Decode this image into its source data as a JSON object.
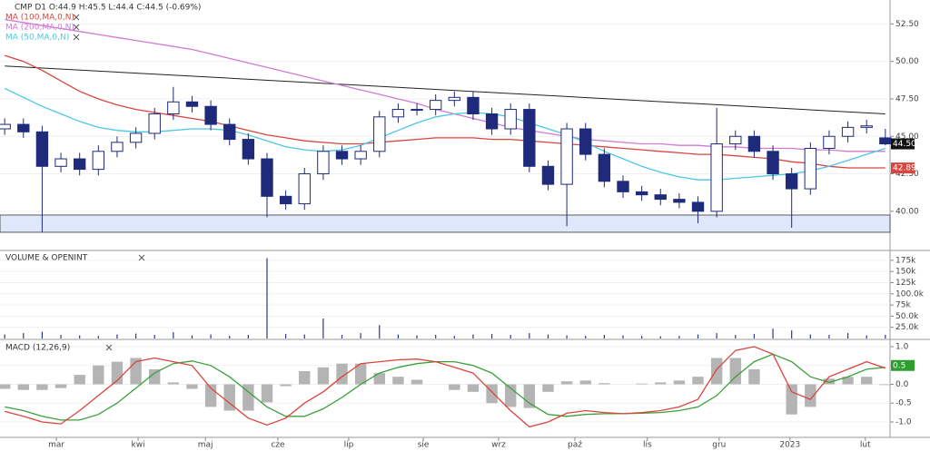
{
  "chart_data": [
    {
      "type": "candlestick",
      "title": "CMP  D1  O:44.9 H:45.5 L:44.4 C:44.5 (-0.69%)",
      "x": [
        0,
        1,
        2,
        3,
        4,
        5,
        6,
        7,
        8,
        9,
        10,
        11,
        12,
        13,
        14,
        15,
        16,
        17,
        18,
        19,
        20,
        21,
        22,
        23,
        24,
        25,
        26,
        27,
        28,
        29,
        30,
        31,
        32,
        33,
        34,
        35,
        36,
        37,
        38,
        39,
        40,
        41,
        42,
        43,
        44,
        45,
        46,
        47
      ],
      "xlim": [
        -0.25,
        47.25
      ],
      "open": [
        45.5,
        45.8,
        45.3,
        43.0,
        43.5,
        42.8,
        44.0,
        44.6,
        45.2,
        46.5,
        47.3,
        47.0,
        45.8,
        44.8,
        43.5,
        41.0,
        40.5,
        42.5,
        44.0,
        43.5,
        44.0,
        46.3,
        46.8,
        46.8,
        47.4,
        47.6,
        46.5,
        45.5,
        46.8,
        43.0,
        41.8,
        45.5,
        43.8,
        42.0,
        41.3,
        41.1,
        40.8,
        40.6,
        40.0,
        44.5,
        45.0,
        44.0,
        42.5,
        41.5,
        44.2,
        45.0,
        45.6,
        44.9
      ],
      "high": [
        46.2,
        46.2,
        45.7,
        43.9,
        43.9,
        44.4,
        45.0,
        45.6,
        46.9,
        48.3,
        47.7,
        47.4,
        46.2,
        45.2,
        43.9,
        41.4,
        42.9,
        44.4,
        44.4,
        44.4,
        46.7,
        47.2,
        47.2,
        47.8,
        48.0,
        48.0,
        46.9,
        47.2,
        47.2,
        43.4,
        45.9,
        45.9,
        44.2,
        42.4,
        41.7,
        41.5,
        41.2,
        41.0,
        46.9,
        45.4,
        45.4,
        44.4,
        42.9,
        44.6,
        45.4,
        46.0,
        46.1,
        45.5
      ],
      "low": [
        45.1,
        44.9,
        38.6,
        42.6,
        42.4,
        42.4,
        43.6,
        44.2,
        44.8,
        46.1,
        46.6,
        45.4,
        44.4,
        43.1,
        39.6,
        40.1,
        40.1,
        42.1,
        43.1,
        43.1,
        43.6,
        45.9,
        46.4,
        46.4,
        47.0,
        46.1,
        45.1,
        45.1,
        42.6,
        41.4,
        39.0,
        43.4,
        41.6,
        40.9,
        40.7,
        40.4,
        40.2,
        39.2,
        39.6,
        44.1,
        43.6,
        42.1,
        38.9,
        41.1,
        43.8,
        44.6,
        45.2,
        44.4
      ],
      "close": [
        45.8,
        45.3,
        43.0,
        43.5,
        42.8,
        44.0,
        44.6,
        45.2,
        46.5,
        47.3,
        47.0,
        45.8,
        44.8,
        43.5,
        41.0,
        40.5,
        42.5,
        44.0,
        43.5,
        44.0,
        46.3,
        46.8,
        46.8,
        47.4,
        47.6,
        46.5,
        45.5,
        46.8,
        43.0,
        41.8,
        45.5,
        43.8,
        42.0,
        41.3,
        41.1,
        40.8,
        40.6,
        40.0,
        44.5,
        45.0,
        44.0,
        42.5,
        41.5,
        44.2,
        45.0,
        45.6,
        45.7,
        44.5
      ],
      "up_color": "#ffffff",
      "down_color": "#1f2a7a",
      "wick_color": "#1f2a7a",
      "series": [
        {
          "name": "MA (100,MA,0,N)",
          "color": "#d9453d",
          "values": [
            50.4,
            50.0,
            49.4,
            48.7,
            48.0,
            47.5,
            47.1,
            46.8,
            46.6,
            46.4,
            46.2,
            46.0,
            45.7,
            45.4,
            45.1,
            44.9,
            44.7,
            44.6,
            44.5,
            44.5,
            44.6,
            44.7,
            44.8,
            44.9,
            44.9,
            44.9,
            44.8,
            44.8,
            44.7,
            44.6,
            44.5,
            44.4,
            44.3,
            44.2,
            44.1,
            44.0,
            43.9,
            43.8,
            43.8,
            43.7,
            43.6,
            43.5,
            43.3,
            43.2,
            43.0,
            42.9,
            42.9,
            42.9
          ]
        },
        {
          "name": "MA (200,MA,0,N)",
          "color": "#d27ad6",
          "values": [
            52.8,
            52.6,
            52.4,
            52.2,
            52.0,
            51.8,
            51.6,
            51.4,
            51.2,
            51.0,
            50.8,
            50.5,
            50.2,
            49.9,
            49.6,
            49.3,
            49.0,
            48.7,
            48.4,
            48.1,
            47.8,
            47.5,
            47.2,
            46.8,
            46.5,
            46.2,
            45.9,
            45.6,
            45.4,
            45.2,
            45.0,
            44.8,
            44.7,
            44.6,
            44.5,
            44.5,
            44.4,
            44.4,
            44.3,
            44.3,
            44.2,
            44.2,
            44.2,
            44.1,
            44.1,
            44.0,
            44.0,
            44.0
          ]
        },
        {
          "name": "MA (50,MA,0,N)",
          "color": "#4cc6e6",
          "values": [
            48.2,
            47.6,
            47.0,
            46.5,
            46.0,
            45.6,
            45.4,
            45.3,
            45.3,
            45.4,
            45.5,
            45.5,
            45.4,
            45.1,
            44.7,
            44.3,
            44.1,
            44.0,
            44.1,
            44.4,
            44.9,
            45.4,
            45.9,
            46.3,
            46.5,
            46.6,
            46.5,
            46.3,
            45.9,
            45.5,
            45.1,
            44.6,
            44.0,
            43.5,
            43.0,
            42.6,
            42.3,
            42.1,
            42.1,
            42.2,
            42.3,
            42.4,
            42.5,
            42.7,
            43.0,
            43.4,
            43.8,
            44.2
          ]
        }
      ],
      "trendline": {
        "x": [
          0,
          47
        ],
        "values": [
          49.7,
          46.5
        ],
        "color": "#222222"
      },
      "zone": [
        38.6,
        39.75
      ],
      "zone_color": "#dfe8fb",
      "value_tags": [
        {
          "value": 44.5,
          "label": "44.50",
          "color": "#111111"
        },
        {
          "value": 42.89,
          "label": "42.89",
          "color": "#d9453d"
        }
      ],
      "ylim": [
        37.75,
        54.1
      ],
      "yticks": [
        {
          "value": 40,
          "label": "40.00"
        },
        {
          "value": 42.5,
          "label": "42.50"
        },
        {
          "value": 45,
          "label": "45.00"
        },
        {
          "value": 47.5,
          "label": "47.50"
        },
        {
          "value": 50,
          "label": "50.00"
        },
        {
          "value": 52.5,
          "label": "52.50"
        }
      ],
      "grid": true
    },
    {
      "type": "bar",
      "title": "VOLUME & OPENINT",
      "x": [
        0,
        1,
        2,
        3,
        4,
        5,
        6,
        7,
        8,
        9,
        10,
        11,
        12,
        13,
        14,
        15,
        16,
        17,
        18,
        19,
        20,
        21,
        22,
        23,
        24,
        25,
        26,
        27,
        28,
        29,
        30,
        31,
        32,
        33,
        34,
        35,
        36,
        37,
        38,
        39,
        40,
        41,
        42,
        43,
        44,
        45,
        46,
        47
      ],
      "xlim": [
        -0.25,
        47.25
      ],
      "values": [
        9000,
        12000,
        15000,
        8000,
        7000,
        6000,
        9000,
        11000,
        8000,
        14000,
        7000,
        9000,
        6000,
        8000,
        180000,
        10000,
        9000,
        45000,
        8000,
        12000,
        30000,
        9000,
        7000,
        8000,
        6000,
        9000,
        10000,
        8000,
        12000,
        9000,
        7000,
        6000,
        8000,
        7000,
        6000,
        5000,
        6000,
        9000,
        12000,
        8000,
        10000,
        22000,
        18000,
        9000,
        8000,
        12000,
        7000,
        8000
      ],
      "color": "#2a3590",
      "ylim": [
        0,
        193000
      ],
      "yticks": [
        {
          "value": 25000,
          "label": "25.0k"
        },
        {
          "value": 50000,
          "label": "50.0k"
        },
        {
          "value": 75000,
          "label": "75k"
        },
        {
          "value": 100000,
          "label": "100.0k"
        },
        {
          "value": 125000,
          "label": "125k"
        },
        {
          "value": 150000,
          "label": "150k"
        },
        {
          "value": 175000,
          "label": "175k"
        }
      ],
      "grid": true
    },
    {
      "type": "macd",
      "title": "MACD (12,26,9)",
      "x": [
        0,
        1,
        2,
        3,
        4,
        5,
        6,
        7,
        8,
        9,
        10,
        11,
        12,
        13,
        14,
        15,
        16,
        17,
        18,
        19,
        20,
        21,
        22,
        23,
        24,
        25,
        26,
        27,
        28,
        29,
        30,
        31,
        32,
        33,
        34,
        35,
        36,
        37,
        38,
        39,
        40,
        41,
        42,
        43,
        44,
        45,
        46,
        47
      ],
      "xlim": [
        -0.25,
        47.25
      ],
      "macd": {
        "color": "#d9453d",
        "values": [
          -0.72,
          -0.85,
          -1.0,
          -1.05,
          -0.7,
          -0.3,
          0.1,
          0.6,
          0.7,
          0.6,
          0.5,
          -0.1,
          -0.5,
          -0.9,
          -1.08,
          -0.9,
          -0.5,
          -0.2,
          0.2,
          0.55,
          0.6,
          0.65,
          0.67,
          0.6,
          0.45,
          0.3,
          -0.2,
          -0.7,
          -1.13,
          -1.0,
          -0.77,
          -0.7,
          -0.75,
          -0.78,
          -0.75,
          -0.7,
          -0.6,
          -0.4,
          0.4,
          0.9,
          1.0,
          0.8,
          -0.2,
          -0.4,
          0.2,
          0.4,
          0.6,
          0.43
        ]
      },
      "signal": {
        "color": "#3aa03a",
        "values": [
          -0.6,
          -0.7,
          -0.85,
          -0.95,
          -0.95,
          -0.8,
          -0.5,
          -0.1,
          0.3,
          0.55,
          0.62,
          0.5,
          0.2,
          -0.2,
          -0.6,
          -0.85,
          -0.85,
          -0.65,
          -0.35,
          0.0,
          0.3,
          0.45,
          0.55,
          0.6,
          0.6,
          0.5,
          0.3,
          -0.1,
          -0.5,
          -0.8,
          -0.85,
          -0.8,
          -0.78,
          -0.78,
          -0.77,
          -0.75,
          -0.7,
          -0.6,
          -0.3,
          0.2,
          0.6,
          0.8,
          0.6,
          0.2,
          0.05,
          0.2,
          0.4,
          0.45
        ]
      },
      "histogram": {
        "color": "#b4b4b4",
        "values": [
          -0.12,
          -0.15,
          -0.15,
          -0.1,
          0.25,
          0.5,
          0.6,
          0.7,
          0.4,
          0.05,
          -0.12,
          -0.6,
          -0.7,
          -0.7,
          -0.48,
          -0.05,
          0.35,
          0.45,
          0.55,
          0.55,
          0.3,
          0.2,
          0.12,
          0.0,
          -0.15,
          -0.2,
          -0.5,
          -0.6,
          -0.63,
          -0.2,
          0.08,
          0.1,
          0.03,
          0.0,
          0.02,
          0.05,
          0.1,
          0.2,
          0.7,
          0.7,
          0.4,
          0.0,
          -0.8,
          -0.6,
          0.15,
          0.2,
          0.2,
          -0.02
        ]
      },
      "value_tags": [
        {
          "value": 0.5,
          "label": "0.5",
          "color": "#2e9e2e"
        }
      ],
      "ylim": [
        -1.41,
        1.145
      ],
      "yticks": [
        {
          "value": 1,
          "label": "1.0"
        },
        0.5,
        {
          "value": 0,
          "label": "0.0"
        },
        -0.5,
        {
          "value": -1,
          "label": "-1.0"
        }
      ],
      "xticks": [
        {
          "value": 2.76,
          "label": "mar"
        },
        {
          "value": 7.12,
          "label": "kwi"
        },
        {
          "value": 10.71,
          "label": "maj"
        },
        {
          "value": 14.58,
          "label": "cze"
        },
        {
          "value": 18.36,
          "label": "lip"
        },
        {
          "value": 22.34,
          "label": "sie"
        },
        {
          "value": 26.36,
          "label": "wrz"
        },
        {
          "value": 30.43,
          "label": "paź"
        },
        {
          "value": 34.3,
          "label": "lis"
        },
        {
          "value": 38.13,
          "label": "gru"
        },
        {
          "value": 41.91,
          "label": "2023"
        },
        {
          "value": 45.93,
          "label": "lut"
        }
      ],
      "grid": true
    }
  ]
}
